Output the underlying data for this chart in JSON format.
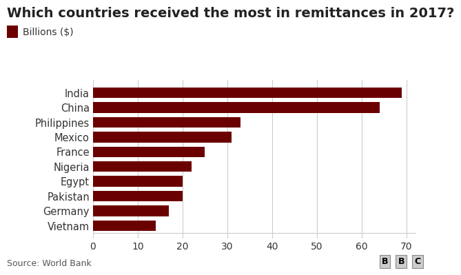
{
  "title": "Which countries received the most in remittances in 2017?",
  "legend_label": "Billions ($)",
  "categories": [
    "Vietnam",
    "Germany",
    "Pakistan",
    "Egypt",
    "Nigeria",
    "France",
    "Mexico",
    "Philippines",
    "China",
    "India"
  ],
  "values": [
    14,
    17,
    20,
    20,
    22,
    25,
    31,
    33,
    64,
    69
  ],
  "bar_color": "#6b0000",
  "background_color": "#ffffff",
  "xlim": [
    0,
    72
  ],
  "xticks": [
    0,
    10,
    20,
    30,
    40,
    50,
    60,
    70
  ],
  "source_text": "Source: World Bank",
  "bbc_text": "BBC",
  "title_fontsize": 14,
  "legend_fontsize": 10,
  "tick_fontsize": 10,
  "ylabel_fontsize": 10.5,
  "source_fontsize": 9
}
